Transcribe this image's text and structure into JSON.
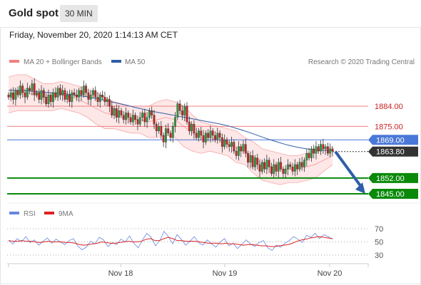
{
  "header": {
    "title": "Gold spot",
    "timeframe": "30 MIN"
  },
  "timestamp": "Friday, November 20, 2020 1:14:13 AM CET",
  "legend": {
    "bollinger": "MA 20 + Bollinger Bands",
    "ma50": "MA 50",
    "copyright": "Research © 2020 Trading Central"
  },
  "rsi_legend": {
    "rsi": "RSI",
    "ma9": "9MA"
  },
  "colors": {
    "candle_up": "#2e9e3a",
    "candle_down": "#cc2222",
    "bollinger": "#f7a6a6",
    "bollinger_fill": "#fde4e4",
    "ma50": "#2f5fa6",
    "red_level": "#f08080",
    "blue_level": "#4a78d8",
    "green_level": "#0a8a0a",
    "current": "#333333",
    "arrow": "#2f5fa6",
    "rsi": "#6688dd",
    "rsi_ma": "#dd2222"
  },
  "chart_data": [
    {
      "type": "candlestick",
      "title": "Gold spot",
      "timeframe": "30 MIN",
      "x_tick_labels": [
        "Nov 18",
        "Nov 19",
        "Nov 20"
      ],
      "y_range": [
        1840,
        1905
      ],
      "grid": false,
      "legend_placement": "top-left",
      "levels": [
        {
          "value": 1884.0,
          "label": "1884.00",
          "role": "resistance",
          "color": "#f08080"
        },
        {
          "value": 1875.0,
          "label": "1875.00",
          "role": "resistance",
          "color": "#f08080"
        },
        {
          "value": 1869.0,
          "label": "1869.00",
          "role": "pivot",
          "color": "#4a78d8"
        },
        {
          "value": 1863.8,
          "label": "1863.80",
          "role": "last-price",
          "color": "#333333"
        },
        {
          "value": 1852.0,
          "label": "1852.00",
          "role": "target",
          "color": "#0a8a0a"
        },
        {
          "value": 1845.0,
          "label": "1845.00",
          "role": "target",
          "color": "#0a8a0a"
        }
      ],
      "candles_close": [
        1888,
        1890,
        1887,
        1891,
        1889,
        1893,
        1890,
        1888,
        1892,
        1891,
        1894,
        1889,
        1890,
        1887,
        1891,
        1888,
        1885,
        1889,
        1886,
        1890,
        1888,
        1892,
        1889,
        1891,
        1887,
        1889,
        1886,
        1890,
        1889,
        1888,
        1891,
        1889,
        1893,
        1890,
        1887,
        1889,
        1891,
        1888,
        1886,
        1889,
        1888,
        1886,
        1887,
        1884,
        1880,
        1883,
        1879,
        1882,
        1880,
        1878,
        1881,
        1879,
        1877,
        1880,
        1878,
        1876,
        1879,
        1881,
        1877,
        1879,
        1882,
        1880,
        1876,
        1873,
        1875,
        1871,
        1868,
        1874,
        1872,
        1870,
        1875,
        1879,
        1885,
        1882,
        1880,
        1884,
        1877,
        1873,
        1876,
        1872,
        1870,
        1873,
        1871,
        1868,
        1872,
        1870,
        1873,
        1871,
        1869,
        1872,
        1870,
        1866,
        1869,
        1867,
        1866,
        1868,
        1864,
        1862,
        1866,
        1864,
        1867,
        1863,
        1859,
        1862,
        1857,
        1861,
        1858,
        1855,
        1859,
        1856,
        1860,
        1857,
        1854,
        1858,
        1855,
        1859,
        1856,
        1854,
        1856,
        1858,
        1857,
        1855,
        1858,
        1856,
        1859,
        1857,
        1860,
        1863,
        1861,
        1865,
        1863,
        1866,
        1864,
        1867,
        1865,
        1866,
        1863,
        1865,
        1864
      ],
      "ma50": [
        1891,
        1891,
        1891,
        1890.8,
        1890.6,
        1890.4,
        1890.2,
        1890,
        1889.8,
        1889.6,
        1889.3,
        1889,
        1888.6,
        1888.2,
        1887.7,
        1887.2,
        1886.6,
        1886,
        1885.4,
        1884.8,
        1884.2,
        1883.5,
        1882.9,
        1882.3,
        1881.7,
        1881.2,
        1880.7,
        1880.2,
        1879.7,
        1879.2,
        1878.7,
        1878.2,
        1877.7,
        1877.2,
        1876.7,
        1876.2,
        1875.6,
        1874.9,
        1874.1,
        1873.3,
        1872.4,
        1871.5,
        1870.5,
        1869.6,
        1868.7,
        1867.9,
        1867.1,
        1866.4,
        1865.8,
        1865.3,
        1864.9,
        1864.6,
        1864.4,
        1864.3,
        1864.3
      ],
      "bollinger": {
        "mid": [
          1889,
          1890,
          1890,
          1889,
          1888,
          1888,
          1889,
          1888,
          1887,
          1885,
          1883,
          1881,
          1880,
          1879,
          1878,
          1878,
          1877,
          1878,
          1879,
          1878,
          1875,
          1872,
          1870,
          1870,
          1869,
          1868,
          1866,
          1864,
          1861,
          1858,
          1857,
          1856,
          1856,
          1856,
          1857,
          1858,
          1860,
          1862
        ],
        "upper": [
          1897,
          1898,
          1898,
          1896,
          1894,
          1894,
          1895,
          1894,
          1893,
          1891,
          1890,
          1888,
          1886,
          1885,
          1884,
          1884,
          1884,
          1886,
          1887,
          1886,
          1884,
          1880,
          1877,
          1876,
          1875,
          1874,
          1873,
          1870,
          1868,
          1865,
          1864,
          1863,
          1862,
          1862,
          1863,
          1864,
          1865,
          1866
        ],
        "lower": [
          1881,
          1882,
          1882,
          1882,
          1882,
          1882,
          1883,
          1882,
          1881,
          1879,
          1876,
          1874,
          1874,
          1873,
          1872,
          1872,
          1870,
          1870,
          1871,
          1870,
          1866,
          1864,
          1863,
          1864,
          1863,
          1862,
          1859,
          1858,
          1854,
          1851,
          1850,
          1849,
          1850,
          1850,
          1851,
          1852,
          1855,
          1858
        ]
      },
      "projection": {
        "from": 1863.8,
        "to": 1845.0,
        "direction": "down"
      }
    },
    {
      "type": "line",
      "title": "RSI",
      "y_range": [
        20,
        80
      ],
      "y_tick_labels": [
        "70",
        "50",
        "30"
      ],
      "reference_lines": [
        70,
        50,
        30
      ],
      "series": [
        {
          "name": "RSI",
          "values": [
            52,
            47,
            55,
            50,
            58,
            49,
            53,
            45,
            51,
            56,
            48,
            54,
            50,
            46,
            52,
            55,
            44,
            38,
            42,
            51,
            47,
            57,
            53,
            43,
            49,
            46,
            54,
            50,
            59,
            48,
            41,
            53,
            63,
            57,
            44,
            52,
            66,
            58,
            47,
            61,
            54,
            45,
            51,
            58,
            49,
            45,
            53,
            47,
            42,
            50,
            55,
            44,
            48,
            40,
            46,
            53,
            47,
            43,
            49,
            52,
            41,
            37,
            45,
            42,
            48,
            52,
            58,
            54,
            49,
            60,
            57,
            63,
            55,
            61,
            58,
            54
          ]
        },
        {
          "name": "9MA",
          "values": [
            52,
            51,
            51,
            52,
            51,
            51,
            50,
            49,
            50,
            51,
            50,
            50,
            50,
            49,
            49,
            48,
            46,
            45,
            46,
            47,
            48,
            50,
            49,
            48,
            48,
            49,
            50,
            51,
            50,
            50,
            51,
            54,
            55,
            52,
            52,
            55,
            57,
            55,
            52,
            52,
            51,
            51,
            51,
            50,
            49,
            48,
            48,
            48,
            47,
            48,
            47,
            47,
            46,
            45,
            46,
            46,
            45,
            44,
            44,
            43,
            43,
            44,
            45,
            46,
            48,
            51,
            53,
            54,
            56,
            57,
            58,
            57,
            56,
            55
          ]
        }
      ]
    }
  ]
}
